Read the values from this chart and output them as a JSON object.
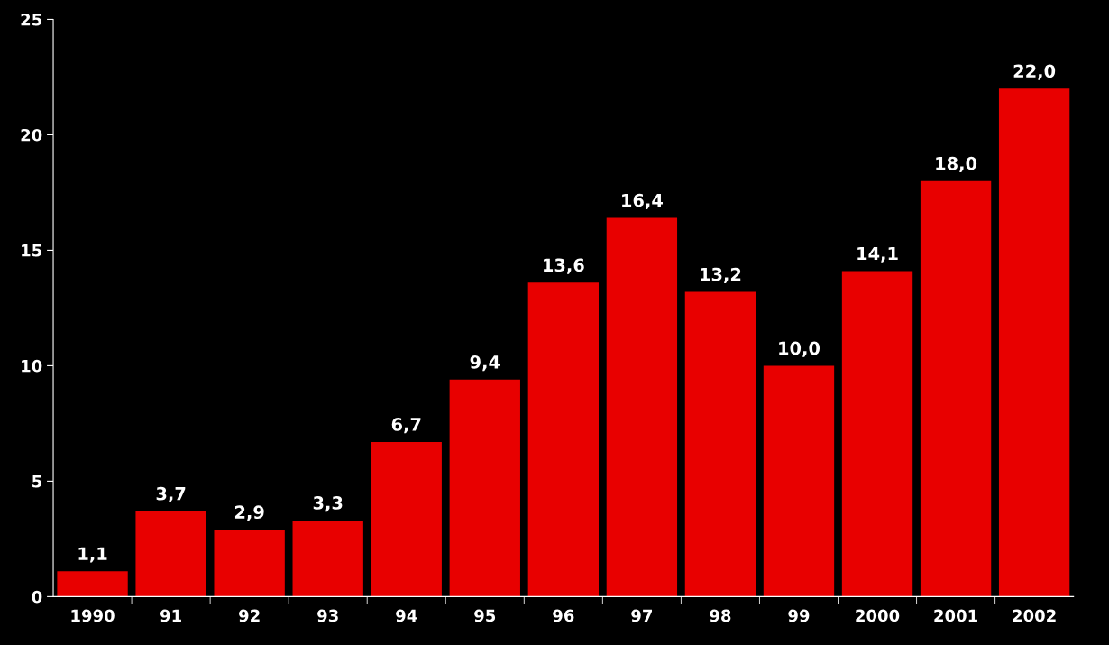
{
  "chart_data": {
    "type": "bar",
    "categories": [
      "1990",
      "91",
      "92",
      "93",
      "94",
      "95",
      "96",
      "97",
      "98",
      "99",
      "2000",
      "2001",
      "2002"
    ],
    "values": [
      1.1,
      3.7,
      2.9,
      3.3,
      6.7,
      9.4,
      13.6,
      16.4,
      13.2,
      10.0,
      14.1,
      18.0,
      22.0
    ],
    "value_labels": [
      "1,1",
      "3,7",
      "2,9",
      "3,3",
      "6,7",
      "9,4",
      "13,6",
      "16,4",
      "13,2",
      "10,0",
      "14,1",
      "18,0",
      "22,0"
    ],
    "color": "#e80000",
    "ylim": [
      0,
      25
    ],
    "yticks": [
      0,
      5,
      10,
      15,
      20,
      25
    ],
    "grid": false,
    "legend": false
  }
}
